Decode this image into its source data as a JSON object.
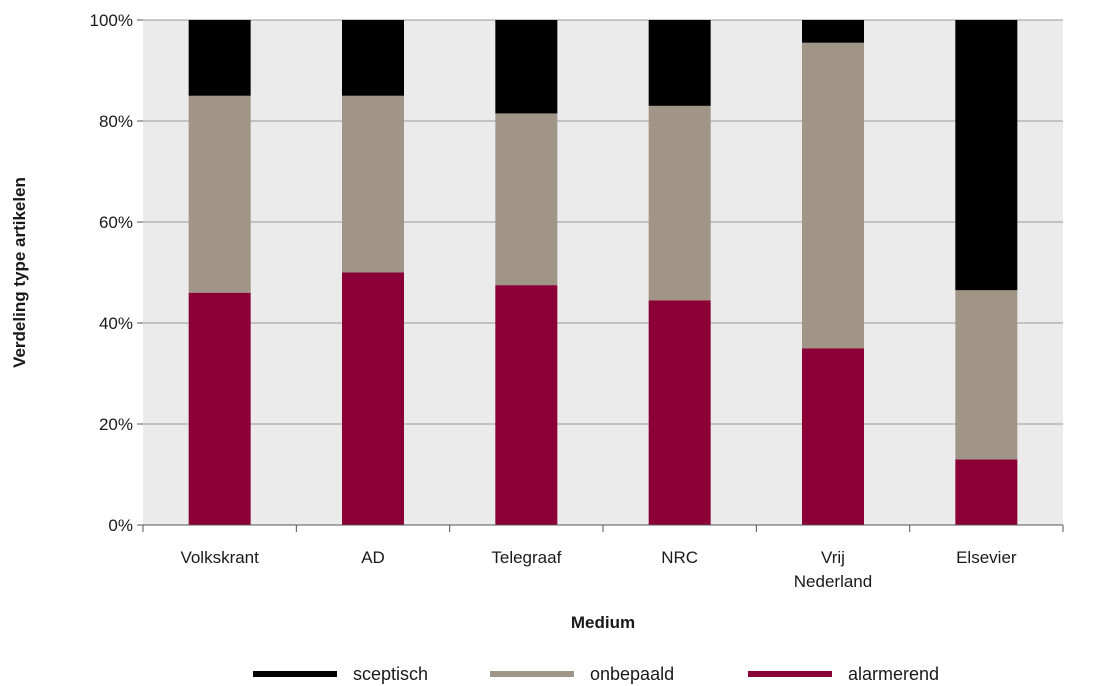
{
  "chart_data": {
    "type": "bar",
    "stacked": true,
    "percent_stacked": true,
    "categories": [
      [
        "Volkskrant"
      ],
      [
        "AD"
      ],
      [
        "Telegraaf"
      ],
      [
        "NRC"
      ],
      [
        "Vrij",
        "Nederland"
      ],
      [
        "Elsevier"
      ]
    ],
    "series": [
      {
        "name": "alarmerend",
        "color": "#8a0036",
        "values": [
          46,
          50,
          47.5,
          44.5,
          35,
          13
        ]
      },
      {
        "name": "onbepaald",
        "color": "#a09587",
        "values": [
          39,
          35,
          34,
          38.5,
          60.5,
          33.5
        ]
      },
      {
        "name": "sceptisch",
        "color": "#000000",
        "values": [
          15,
          15,
          18.5,
          17,
          4.5,
          53.5
        ]
      }
    ],
    "legend_order": [
      "sceptisch",
      "onbepaald",
      "alarmerend"
    ],
    "xlabel": "Medium",
    "ylabel": "Verdeling type artikelen",
    "ylim": [
      0,
      100
    ],
    "yticks": [
      "0%",
      "20%",
      "40%",
      "60%",
      "80%",
      "100%"
    ],
    "grid": true,
    "legend_position": "bottom",
    "plot_background": "#ecebeb",
    "gridline_color": "#9a9a9a"
  }
}
